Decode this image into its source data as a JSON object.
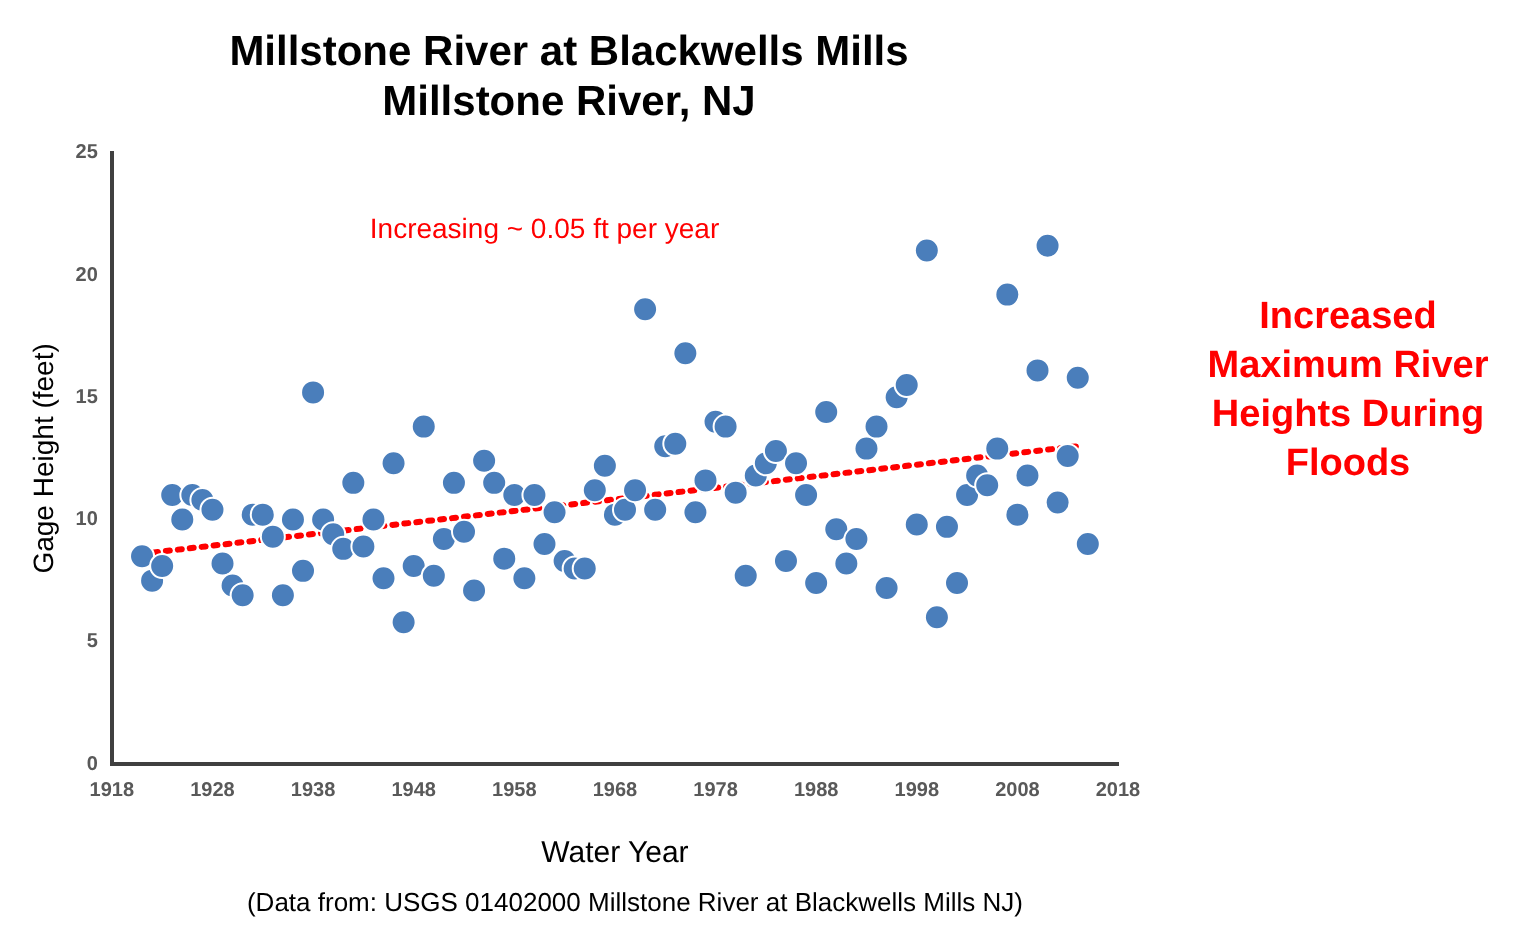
{
  "chart_data": {
    "type": "scatter",
    "title": [
      "Millstone River at Blackwells Mills",
      "Millstone River, NJ"
    ],
    "xlabel": "Water Year",
    "ylabel": "Gage Height (feet)",
    "annotations": [
      "Increasing ~ 0.05 ft per year",
      "Increased Maximum River Heights During Floods",
      "(Data from: USGS 01402000 Millstone River at Blackwells Mills NJ)"
    ],
    "xlim": [
      1918,
      2018
    ],
    "xticks": [
      1918,
      1928,
      1938,
      1948,
      1958,
      1968,
      1978,
      1988,
      1998,
      2008,
      2018
    ],
    "ylim": [
      0,
      25
    ],
    "yticks": [
      0,
      5,
      10,
      15,
      20,
      25
    ],
    "grid": false,
    "legend": false,
    "x": [
      1921,
      1922,
      1923,
      1924,
      1925,
      1926,
      1927,
      1928,
      1929,
      1930,
      1931,
      1932,
      1933,
      1934,
      1935,
      1936,
      1937,
      1938,
      1939,
      1940,
      1941,
      1942,
      1943,
      1944,
      1945,
      1946,
      1947,
      1948,
      1949,
      1950,
      1951,
      1952,
      1953,
      1954,
      1955,
      1956,
      1957,
      1958,
      1959,
      1960,
      1961,
      1962,
      1963,
      1964,
      1965,
      1966,
      1967,
      1968,
      1969,
      1970,
      1971,
      1972,
      1973,
      1974,
      1975,
      1976,
      1977,
      1978,
      1979,
      1980,
      1981,
      1982,
      1983,
      1984,
      1985,
      1986,
      1987,
      1988,
      1989,
      1990,
      1991,
      1992,
      1993,
      1994,
      1995,
      1996,
      1997,
      1998,
      1999,
      2000,
      2001,
      2002,
      2003,
      2004,
      2005,
      2006,
      2007,
      2008,
      2009,
      2010,
      2011,
      2012,
      2013,
      2014,
      2015
    ],
    "series": [
      {
        "color": "#4a7ebb",
        "marker": "circle",
        "values": [
          8.5,
          7.5,
          8.1,
          11.0,
          10.0,
          11.0,
          10.8,
          10.4,
          8.2,
          7.3,
          6.9,
          10.2,
          10.2,
          9.3,
          6.9,
          10.0,
          7.9,
          15.2,
          10.0,
          9.4,
          8.8,
          11.5,
          8.9,
          10.0,
          7.6,
          12.3,
          5.8,
          8.1,
          13.8,
          7.7,
          9.2,
          11.5,
          9.5,
          7.1,
          12.4,
          11.5,
          8.4,
          11.0,
          7.6,
          11.0,
          9.0,
          10.3,
          8.3,
          8.0,
          8.0,
          11.2,
          12.2,
          10.2,
          10.4,
          11.2,
          18.6,
          10.4,
          13.0,
          13.1,
          16.8,
          10.3,
          11.6,
          14.0,
          13.8,
          11.1,
          7.7,
          11.8,
          12.3,
          12.8,
          8.3,
          12.3,
          11.0,
          7.4,
          14.4,
          9.6,
          8.2,
          9.2,
          12.9,
          13.8,
          7.2,
          15.0,
          15.5,
          9.8,
          21.0,
          6.0,
          9.7,
          7.4,
          11.0,
          11.8,
          11.4,
          12.9,
          19.2,
          10.2,
          11.8,
          16.1,
          21.2,
          10.7,
          12.6,
          15.8,
          9.0
        ]
      },
      {
        "type": "line",
        "color": "#ff0000",
        "line_style": "dotted",
        "marker": "none",
        "x": [
          1921,
          2014
        ],
        "values": [
          8.6,
          13.0
        ]
      }
    ]
  }
}
